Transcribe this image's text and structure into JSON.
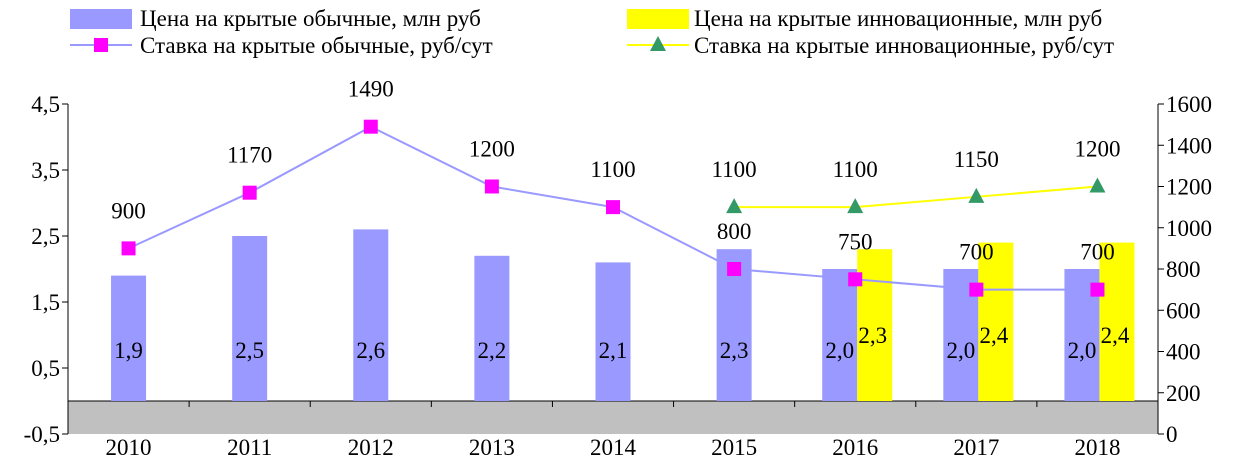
{
  "chart_data": {
    "type": "bar",
    "categories": [
      "2010",
      "2011",
      "2012",
      "2013",
      "2014",
      "2015",
      "2016",
      "2017",
      "2018"
    ],
    "y_left": {
      "ylim": [
        -0.5,
        4.5
      ],
      "ticks": [
        "4,5",
        "3,5",
        "2,5",
        "1,5",
        "0,5",
        "-0,5"
      ],
      "tick_values": [
        4.5,
        3.5,
        2.5,
        1.5,
        0.5,
        -0.5
      ]
    },
    "y_right": {
      "ylim": [
        0,
        1600
      ],
      "ticks": [
        "1600",
        "1400",
        "1200",
        "1000",
        "800",
        "600",
        "400",
        "200",
        "0"
      ],
      "tick_values": [
        1600,
        1400,
        1200,
        1000,
        800,
        600,
        400,
        200,
        0
      ]
    },
    "series": [
      {
        "name": "Цена на крытые обычные, млн руб",
        "kind": "bar",
        "axis": "left",
        "color": "#9999ff",
        "values": [
          1.9,
          2.5,
          2.6,
          2.2,
          2.1,
          2.3,
          2.0,
          2.0,
          2.0
        ],
        "labels": [
          "1,9",
          "2,5",
          "2,6",
          "2,2",
          "2,1",
          "2,3",
          "2,0",
          "2,0",
          "2,0"
        ]
      },
      {
        "name": "Цена на крытые инновационные, млн руб",
        "kind": "bar",
        "axis": "left",
        "color": "#ffff00",
        "values": [
          null,
          null,
          null,
          null,
          null,
          null,
          2.3,
          2.4,
          2.4
        ],
        "labels": [
          "",
          "",
          "",
          "",
          "",
          "",
          "2,3",
          "2,4",
          "2,4"
        ]
      },
      {
        "name": "Ставка на крытые обычные, руб/сут",
        "kind": "line",
        "axis": "right",
        "color": "#9999ff",
        "marker": "square",
        "marker_color": "#ff00ff",
        "values": [
          900,
          1170,
          1490,
          1200,
          1100,
          800,
          750,
          700,
          700
        ],
        "labels": [
          "900",
          "1170",
          "1490",
          "1200",
          "1100",
          "800",
          "750",
          "700",
          "700"
        ]
      },
      {
        "name": "Ставка на крытые инновационные, руб/сут",
        "kind": "line",
        "axis": "right",
        "color": "#ffff00",
        "marker": "triangle",
        "marker_color": "#339966",
        "values": [
          null,
          null,
          null,
          null,
          null,
          1100,
          1100,
          1150,
          1200
        ],
        "labels": [
          "",
          "",
          "",
          "",
          "",
          "1100",
          "1100",
          "1150",
          "1200"
        ]
      }
    ],
    "grid": true,
    "legend": "top",
    "colors": {
      "plot_floor": "#c0c0c0",
      "grid": "#ffffff"
    }
  }
}
